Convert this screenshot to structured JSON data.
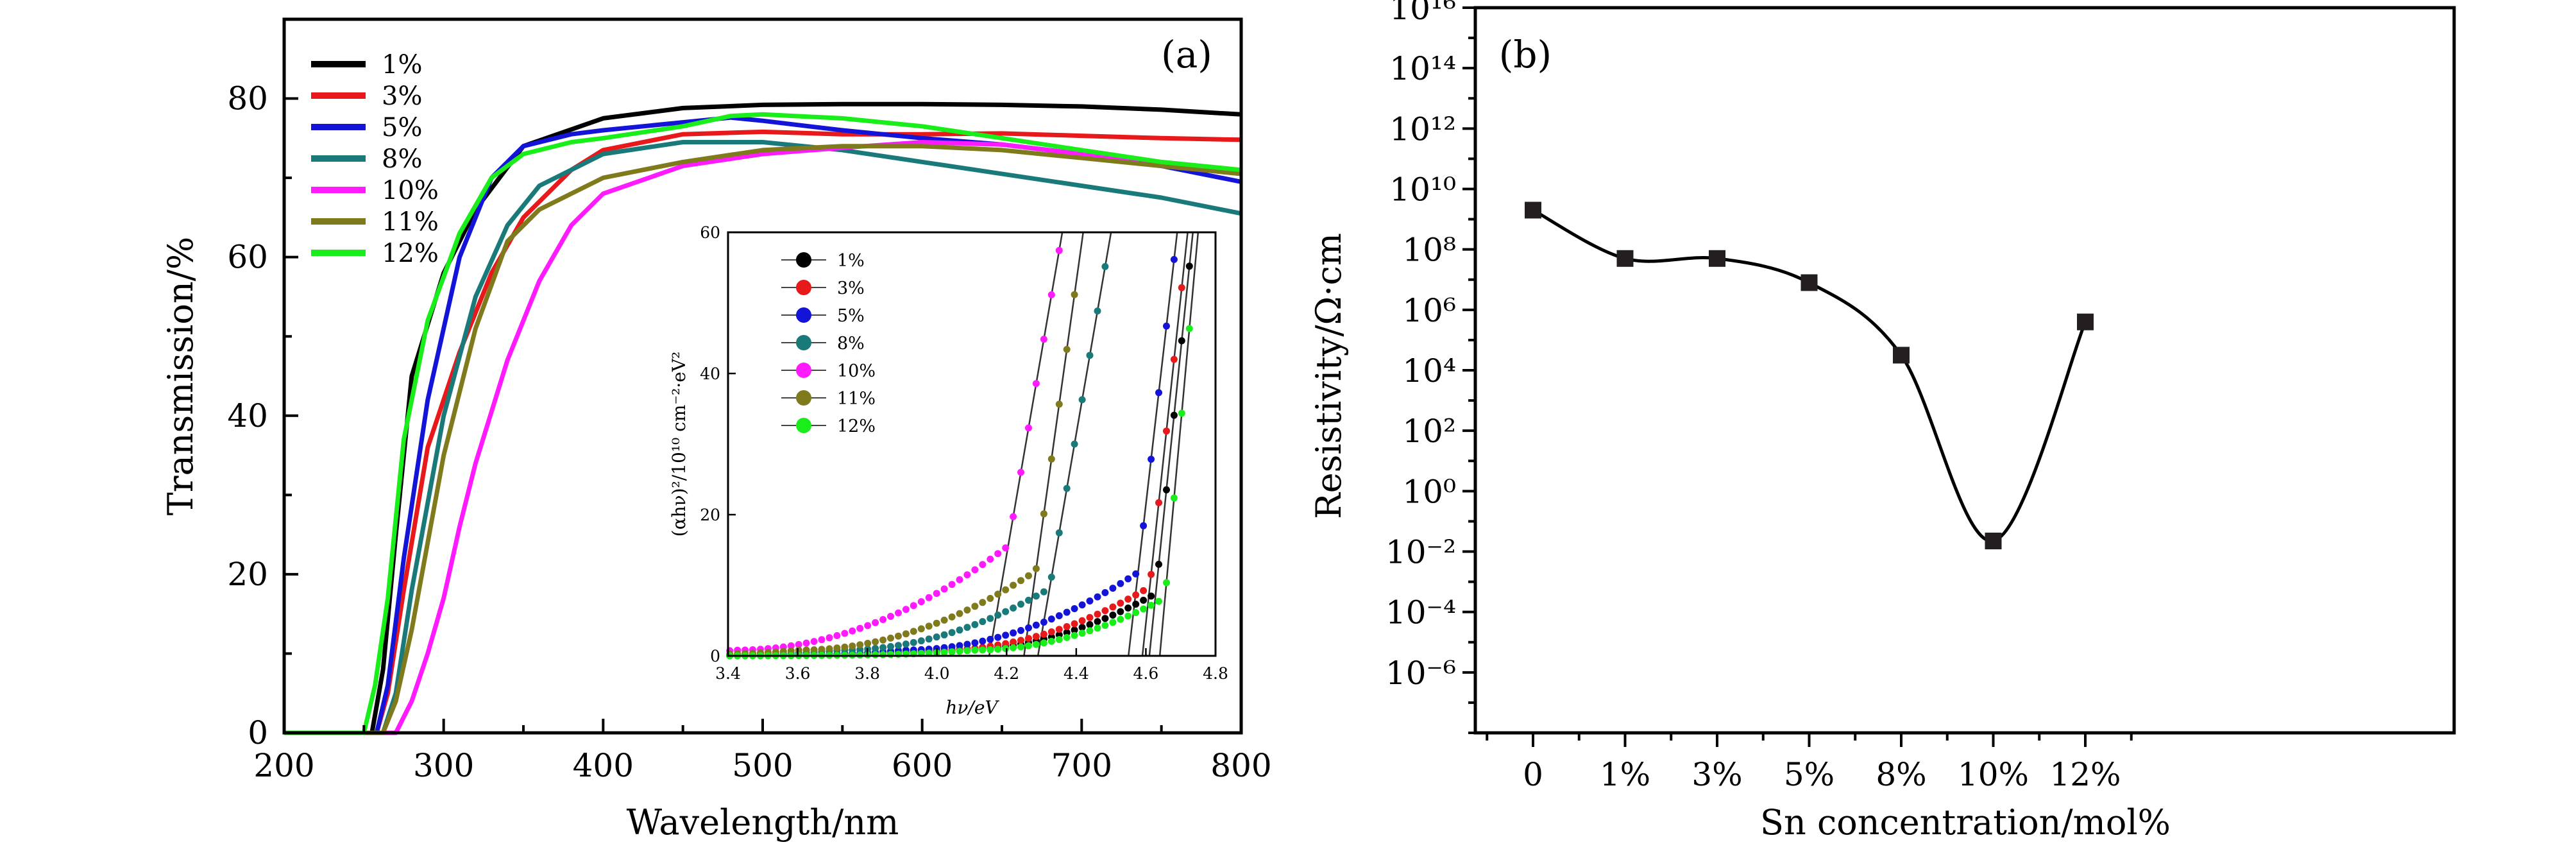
{
  "chart_data": [
    {
      "type": "line",
      "panel_label": "(a)",
      "xlabel": "Wavelength/nm",
      "ylabel": "Transmission/%",
      "xlim": [
        200,
        800
      ],
      "ylim": [
        0,
        90
      ],
      "xticks": [
        200,
        300,
        400,
        500,
        600,
        700,
        800
      ],
      "yticks": [
        0,
        20,
        40,
        60,
        80
      ],
      "legend_position": "top-left",
      "series": [
        {
          "name": "1%",
          "color": "#000000",
          "x": [
            200,
            255,
            262,
            270,
            280,
            300,
            320,
            350,
            400,
            450,
            500,
            550,
            600,
            650,
            700,
            750,
            800
          ],
          "y": [
            0,
            0,
            8,
            25,
            45,
            58,
            66,
            74,
            77.5,
            78.8,
            79.2,
            79.3,
            79.3,
            79.2,
            79.0,
            78.6,
            78.0
          ]
        },
        {
          "name": "3%",
          "color": "#e8191a",
          "x": [
            200,
            258,
            265,
            275,
            290,
            310,
            330,
            350,
            380,
            400,
            450,
            500,
            550,
            600,
            650,
            700,
            750,
            800
          ],
          "y": [
            0,
            0,
            5,
            18,
            36,
            48,
            58,
            65,
            71,
            73.5,
            75.5,
            75.8,
            75.5,
            75.5,
            75.6,
            75.3,
            75.0,
            74.8
          ]
        },
        {
          "name": "5%",
          "color": "#1414d8",
          "x": [
            200,
            258,
            265,
            275,
            290,
            310,
            330,
            350,
            380,
            400,
            450,
            480,
            500,
            550,
            600,
            650,
            700,
            750,
            800
          ],
          "y": [
            0,
            0,
            6,
            22,
            42,
            60,
            70,
            74,
            75.5,
            76,
            77,
            77.6,
            77.2,
            76,
            75,
            74.2,
            73,
            71.5,
            69.5
          ]
        },
        {
          "name": "8%",
          "color": "#1a7a7a",
          "x": [
            200,
            262,
            270,
            280,
            300,
            320,
            340,
            360,
            400,
            450,
            500,
            550,
            600,
            650,
            700,
            750,
            800
          ],
          "y": [
            0,
            0,
            5,
            18,
            40,
            55,
            64,
            69,
            73,
            74.5,
            74.5,
            73.5,
            72,
            70.5,
            69,
            67.5,
            65.5
          ]
        },
        {
          "name": "10%",
          "color": "#ff1aff",
          "x": [
            200,
            270,
            280,
            290,
            300,
            310,
            320,
            340,
            360,
            380,
            400,
            450,
            500,
            550,
            600,
            650,
            700,
            750,
            800
          ],
          "y": [
            0,
            0,
            4,
            10,
            17,
            26,
            34,
            47,
            57,
            64,
            68,
            71.5,
            73,
            73.8,
            74.5,
            74.2,
            73,
            71.5,
            70.5
          ]
        },
        {
          "name": "11%",
          "color": "#7f7a1c",
          "x": [
            200,
            262,
            270,
            280,
            290,
            300,
            320,
            340,
            360,
            380,
            400,
            450,
            500,
            550,
            600,
            650,
            700,
            750,
            800
          ],
          "y": [
            0,
            0,
            4,
            13,
            24,
            35,
            51,
            62,
            66,
            68,
            70,
            72,
            73.5,
            74,
            74,
            73.5,
            72.5,
            71.5,
            70.5
          ]
        },
        {
          "name": "12%",
          "color": "#1aee1a",
          "x": [
            200,
            250,
            257,
            265,
            275,
            290,
            310,
            330,
            350,
            380,
            400,
            450,
            480,
            500,
            550,
            600,
            650,
            700,
            750,
            800
          ],
          "y": [
            0,
            0,
            6,
            17,
            37,
            52,
            63,
            70,
            73,
            74.5,
            75,
            76.5,
            77.8,
            78,
            77.5,
            76.5,
            75,
            73.5,
            72,
            71
          ]
        }
      ]
    },
    {
      "type": "scatter",
      "role": "inset",
      "xlabel": "hν/eV",
      "ylabel": "(αhν)²/10¹⁰ cm⁻²·eV²",
      "xlim": [
        3.4,
        4.8
      ],
      "ylim": [
        0,
        60
      ],
      "xticks": [
        3.4,
        3.6,
        3.8,
        4.0,
        4.2,
        4.4,
        4.6,
        4.8
      ],
      "yticks": [
        0,
        20,
        40,
        60
      ],
      "legend_position": "top-left",
      "series": [
        {
          "name": "1%",
          "color": "#000000",
          "onset": 4.05,
          "fit": [
            4.61,
            4.735
          ]
        },
        {
          "name": "3%",
          "color": "#e8191a",
          "onset": 4.0,
          "fit": [
            4.59,
            4.72
          ]
        },
        {
          "name": "5%",
          "color": "#1414d8",
          "onset": 3.9,
          "fit": [
            4.55,
            4.69
          ]
        },
        {
          "name": "8%",
          "color": "#1a7a7a",
          "onset": 3.72,
          "fit": [
            4.29,
            4.5
          ]
        },
        {
          "name": "10%",
          "color": "#ff1aff",
          "onset": 3.42,
          "fit": [
            4.15,
            4.36
          ]
        },
        {
          "name": "11%",
          "color": "#7f7a1c",
          "onset": 3.6,
          "fit": [
            4.25,
            4.42
          ]
        },
        {
          "name": "12%",
          "color": "#1aee1a",
          "onset": 4.1,
          "fit": [
            4.64,
            4.75
          ]
        }
      ]
    },
    {
      "type": "line",
      "panel_label": "(b)",
      "xlabel": "Sn concentration/mol%",
      "ylabel": "Resistivity/Ω·cm",
      "yscale": "log",
      "ylim_exp": [
        -8,
        16
      ],
      "ytick_exps": [
        -6,
        -4,
        -2,
        0,
        2,
        4,
        6,
        8,
        10,
        12,
        14,
        16
      ],
      "categories": [
        "0",
        "1%",
        "3%",
        "5%",
        "8%",
        "10%",
        "12%"
      ],
      "series": [
        {
          "marker": "square",
          "color": "#231f20",
          "values_log10": [
            9.3,
            7.7,
            7.7,
            6.9,
            4.5,
            -1.65,
            5.6
          ]
        }
      ]
    }
  ]
}
